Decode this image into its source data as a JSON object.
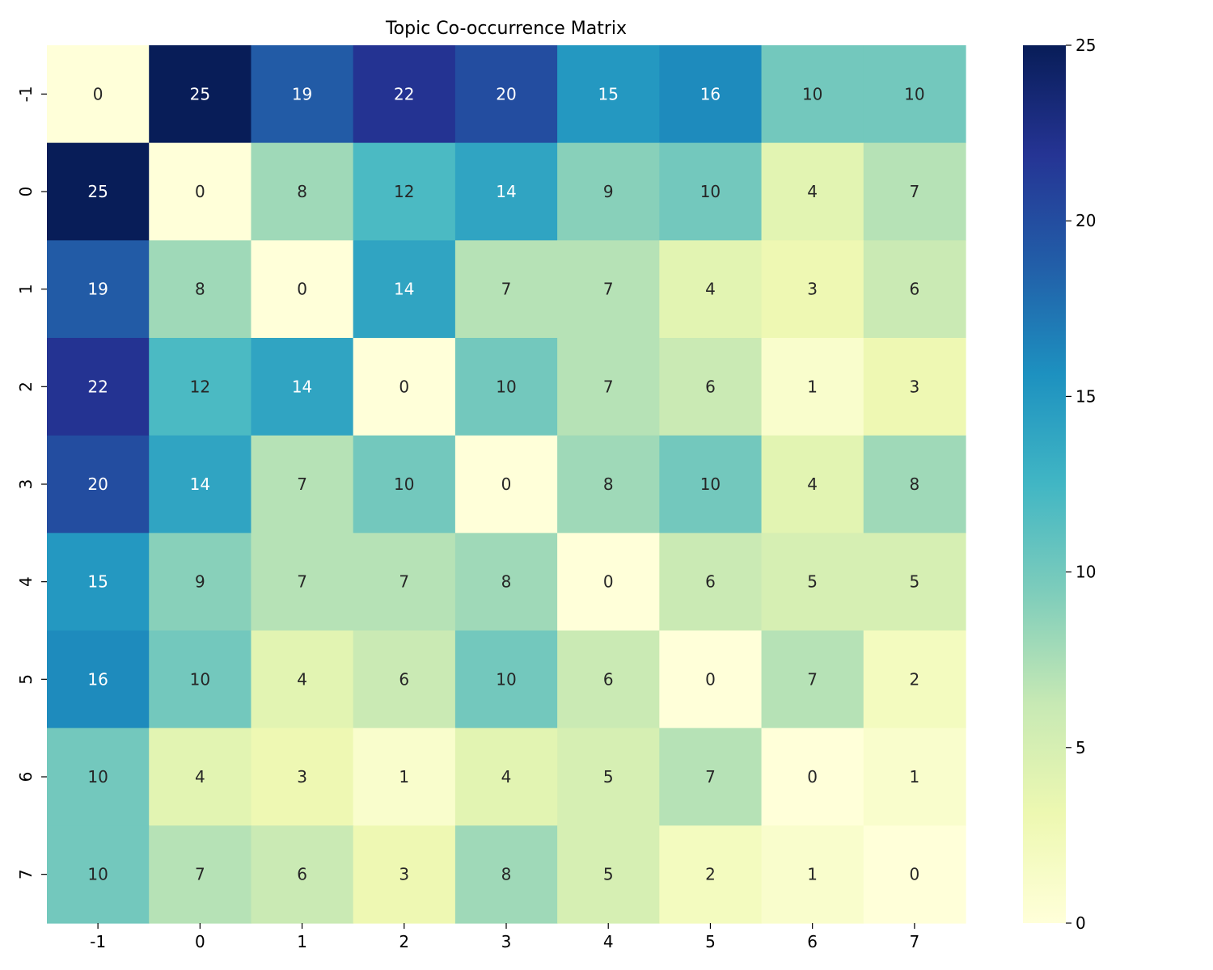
{
  "chart_data": {
    "type": "heatmap",
    "title": "Topic Co-occurrence Matrix",
    "xlabel": "",
    "ylabel": "",
    "x_labels": [
      "-1",
      "0",
      "1",
      "2",
      "3",
      "4",
      "5",
      "6",
      "7"
    ],
    "y_labels": [
      "-1",
      "0",
      "1",
      "2",
      "3",
      "4",
      "5",
      "6",
      "7"
    ],
    "values": [
      [
        0,
        25,
        19,
        22,
        20,
        15,
        16,
        10,
        10
      ],
      [
        25,
        0,
        8,
        12,
        14,
        9,
        10,
        4,
        7
      ],
      [
        19,
        8,
        0,
        14,
        7,
        7,
        4,
        3,
        6
      ],
      [
        22,
        12,
        14,
        0,
        10,
        7,
        6,
        1,
        3
      ],
      [
        20,
        14,
        7,
        10,
        0,
        8,
        10,
        4,
        8
      ],
      [
        15,
        9,
        7,
        7,
        8,
        0,
        6,
        5,
        5
      ],
      [
        16,
        10,
        4,
        6,
        10,
        6,
        0,
        7,
        2
      ],
      [
        10,
        4,
        3,
        1,
        4,
        5,
        7,
        0,
        1
      ],
      [
        10,
        7,
        6,
        3,
        8,
        5,
        2,
        1,
        0
      ]
    ],
    "colormap": "YlGnBu",
    "vmin": 0,
    "vmax": 25,
    "colorbar": {
      "ticks": [
        0,
        5,
        10,
        15,
        20,
        25
      ],
      "tick_labels": [
        "0",
        "5",
        "10",
        "15",
        "20",
        "25"
      ]
    },
    "annotations": true,
    "grid": false
  },
  "colors": {
    "colormap_stops": [
      "#ffffd9",
      "#edf8b1",
      "#c7e9b4",
      "#7fcdbb",
      "#41b6c4",
      "#1d91c0",
      "#225ea8",
      "#253494",
      "#081d58"
    ],
    "annotation_dark": "#262626",
    "annotation_light": "#ffffff"
  }
}
